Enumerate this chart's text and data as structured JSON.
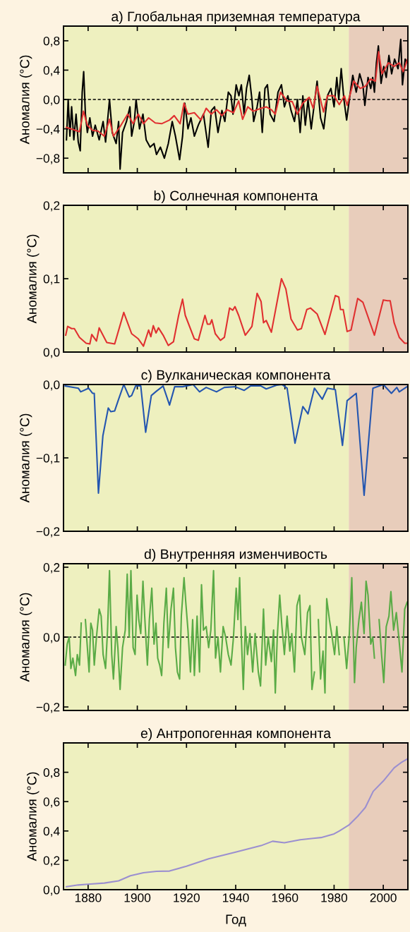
{
  "chart_data": [
    {
      "type": "line",
      "title": "a) Глобальная приземная температура",
      "ylabel": "Аномалия (°C)",
      "tick_labels": "y",
      "xlim": [
        1870,
        2010
      ],
      "xticks": [
        {
          "value": 1880,
          "label": null
        },
        {
          "value": 1900,
          "label": null
        },
        {
          "value": 1920,
          "label": null
        },
        {
          "value": 1940,
          "label": null
        },
        {
          "value": 1960,
          "label": null
        },
        {
          "value": 1980,
          "label": null
        },
        {
          "value": 2000,
          "label": null
        }
      ],
      "ylim": [
        -1.0,
        1.0
      ],
      "yticks": [
        {
          "value": -0.8,
          "label": "−0,8"
        },
        {
          "value": -0.4,
          "label": "−0,4"
        },
        {
          "value": 0,
          "label": "0,0"
        },
        {
          "value": 0.4,
          "label": "0,4"
        },
        {
          "value": 0.8,
          "label": "0,8"
        }
      ],
      "bands": [
        {
          "axis": "x",
          "from": 1870,
          "to": 1986,
          "color": "#eef0bf"
        },
        {
          "axis": "x",
          "from": 1986,
          "to": 2010,
          "color": "#e8cdbb"
        }
      ],
      "ref_lines": [
        {
          "axis": "y",
          "value": 0,
          "color": "#000000",
          "line_style": "dashed"
        }
      ],
      "series": [
        {
          "color": "#000000",
          "x": [
            1871.2,
            1871.9,
            1872.6,
            1873.3,
            1874.2,
            1875.1,
            1876.0,
            1876.8,
            1877.6,
            1878.2,
            1878.9,
            1879.7,
            1880.7,
            1881.8,
            1882.9,
            1884.5,
            1886.1,
            1887.1,
            1888.7,
            1889.8,
            1891.4,
            1892.4,
            1893.0,
            1894.0,
            1895.6,
            1897.0,
            1897.7,
            1898.8,
            1899.5,
            1900.9,
            1902.3,
            1903.6,
            1905.2,
            1906.8,
            1907.8,
            1909.4,
            1911.0,
            1912.6,
            1914.2,
            1915.5,
            1917.2,
            1918.4,
            1919.3,
            1920.6,
            1921.8,
            1923.2,
            1924.8,
            1926.9,
            1928.8,
            1930.1,
            1931.4,
            1932.8,
            1934.4,
            1935.6,
            1937.0,
            1938.1,
            1938.9,
            1940.2,
            1941.3,
            1942.3,
            1943.4,
            1944.4,
            1945.5,
            1946.6,
            1947.3,
            1948.7,
            1949.7,
            1950.8,
            1951.9,
            1952.9,
            1954.0,
            1955.6,
            1957.2,
            1958.6,
            1959.8,
            1961.2,
            1962.5,
            1963.9,
            1965.1,
            1966.2,
            1967.3,
            1968.3,
            1969.4,
            1970.7,
            1972.0,
            1973.1,
            1974.5,
            1975.8,
            1977.3,
            1978.7,
            1980.0,
            1981.1,
            1981.9,
            1982.9,
            1984.0,
            1985.1,
            1986.4,
            1987.6,
            1989.0,
            1990.4,
            1991.7,
            1992.5,
            1993.8,
            1994.9,
            1995.7,
            1996.4,
            1997.2,
            1998.0,
            1999.1,
            2000.2,
            2001.2,
            2002.3,
            2003.4,
            2004.6,
            2006.0,
            2007.1,
            2007.8,
            2008.9,
            2009.9
          ],
          "values": [
            -0.55,
            0.0,
            -0.5,
            -0.1,
            -0.55,
            -0.2,
            -0.58,
            -0.7,
            0.1,
            0.38,
            -0.2,
            -0.45,
            -0.25,
            -0.5,
            -0.35,
            -0.55,
            -0.3,
            -0.58,
            0.0,
            -0.45,
            -0.6,
            -0.3,
            -0.95,
            -0.45,
            -0.3,
            -0.1,
            -0.5,
            -0.3,
            0.0,
            -0.4,
            -0.2,
            -0.55,
            -0.65,
            -0.6,
            -0.75,
            -0.65,
            -0.8,
            -0.6,
            -0.3,
            -0.5,
            -0.82,
            -0.5,
            -0.05,
            -0.4,
            -0.25,
            -0.5,
            -0.35,
            -0.2,
            -0.65,
            -0.15,
            -0.1,
            -0.45,
            -0.15,
            -0.3,
            0.1,
            0.05,
            -0.2,
            0.2,
            0.05,
            0.2,
            -0.2,
            0.15,
            0.33,
            0.0,
            -0.3,
            -0.1,
            0.1,
            -0.45,
            0.15,
            0.2,
            -0.2,
            -0.3,
            0.1,
            0.2,
            -0.1,
            0.05,
            -0.15,
            -0.3,
            0.0,
            -0.45,
            0.05,
            -0.35,
            0.0,
            -0.4,
            -0.05,
            0.25,
            -0.25,
            -0.4,
            0.05,
            0.15,
            -0.1,
            0.3,
            0.0,
            0.42,
            0.0,
            -0.28,
            0.05,
            0.33,
            0.1,
            0.35,
            0.2,
            -0.08,
            0.3,
            0.15,
            0.3,
            0.1,
            0.5,
            0.73,
            0.22,
            0.45,
            0.3,
            0.6,
            0.35,
            0.55,
            0.42,
            0.82,
            0.2,
            0.55,
            0.5
          ]
        },
        {
          "color": "#e03030",
          "x": [
            1871.2,
            1874.9,
            1876.5,
            1878.1,
            1879.7,
            1881.8,
            1884.0,
            1886.6,
            1888.7,
            1890.3,
            1893.0,
            1896.1,
            1898.3,
            1900.4,
            1902.5,
            1904.6,
            1907.3,
            1909.9,
            1913.1,
            1915.0,
            1917.4,
            1919.0,
            1920.6,
            1923.2,
            1925.9,
            1928.0,
            1930.1,
            1932.2,
            1934.4,
            1936.5,
            1939.1,
            1941.2,
            1942.8,
            1944.9,
            1947.1,
            1950.3,
            1952.4,
            1954.5,
            1956.1,
            1958.2,
            1960.9,
            1963.0,
            1965.1,
            1967.3,
            1969.9,
            1971.5,
            1973.1,
            1975.7,
            1977.3,
            1980.0,
            1982.1,
            1984.2,
            1985.3,
            1988.0,
            1990.6,
            1992.7,
            1994.8,
            1996.8,
            1998.1,
            1999.5,
            2002.1,
            2004.4,
            2006.5,
            2008.1,
            2009.9
          ],
          "values": [
            -0.38,
            -0.42,
            -0.44,
            -0.16,
            -0.35,
            -0.42,
            -0.43,
            -0.5,
            -0.27,
            -0.5,
            -0.37,
            -0.2,
            -0.33,
            -0.2,
            -0.33,
            -0.25,
            -0.32,
            -0.33,
            -0.28,
            -0.22,
            -0.33,
            -0.05,
            -0.2,
            -0.18,
            -0.28,
            -0.12,
            -0.2,
            -0.14,
            -0.22,
            -0.14,
            -0.18,
            -0.02,
            -0.27,
            -0.1,
            -0.16,
            -0.12,
            -0.1,
            -0.14,
            -0.2,
            0.1,
            -0.02,
            -0.03,
            -0.2,
            -0.05,
            0.03,
            -0.12,
            0.18,
            -0.17,
            0.05,
            0.05,
            -0.07,
            0.05,
            -0.08,
            0.25,
            0.15,
            0.18,
            0.28,
            0.25,
            0.65,
            0.35,
            0.5,
            0.45,
            0.5,
            0.38,
            0.55
          ]
        }
      ]
    },
    {
      "type": "line",
      "title": "b) Солнечная компонента",
      "ylabel": "Аномалия (°C)",
      "tick_labels": "y",
      "xlim": [
        1870,
        2010
      ],
      "xticks": [
        {
          "value": 1880,
          "label": null
        },
        {
          "value": 1900,
          "label": null
        },
        {
          "value": 1920,
          "label": null
        },
        {
          "value": 1940,
          "label": null
        },
        {
          "value": 1960,
          "label": null
        },
        {
          "value": 1980,
          "label": null
        },
        {
          "value": 2000,
          "label": null
        }
      ],
      "ylim": [
        0,
        0.2
      ],
      "yticks": [
        {
          "value": 0,
          "label": "0,0"
        },
        {
          "value": 0.1,
          "label": "0,1"
        },
        {
          "value": 0.2,
          "label": "0,2"
        }
      ],
      "bands": [
        {
          "axis": "x",
          "from": 1870,
          "to": 1986,
          "color": "#eef0bf"
        },
        {
          "axis": "x",
          "from": 1986,
          "to": 2010,
          "color": "#e8cdbb"
        }
      ],
      "series": [
        {
          "color": "#e03030",
          "x": [
            1870.9,
            1871.7,
            1873.3,
            1874.4,
            1876.5,
            1879.2,
            1880.7,
            1881.5,
            1883.4,
            1884.5,
            1887.6,
            1890.8,
            1894.5,
            1897.7,
            1900.4,
            1902.5,
            1904.6,
            1905.5,
            1906.5,
            1907.6,
            1908.6,
            1910.5,
            1912.6,
            1914.7,
            1916.8,
            1918.4,
            1919.5,
            1923.2,
            1924.8,
            1927.5,
            1928.5,
            1929.6,
            1930.3,
            1931.7,
            1933.8,
            1935.4,
            1937.5,
            1938.8,
            1939.7,
            1941.2,
            1943.9,
            1945.5,
            1946.6,
            1948.7,
            1950.3,
            1951.3,
            1952.4,
            1954.5,
            1958.6,
            1960.4,
            1962.5,
            1965.1,
            1966.7,
            1968.9,
            1970.4,
            1973.1,
            1976.3,
            1980.5,
            1981.9,
            1982.6,
            1983.7,
            1985.3,
            1986.9,
            1989.6,
            1991.7,
            1996.4,
            2000.0,
            2001.7,
            2002.8,
            2004.4,
            2006.5,
            2008.7,
            2009.9
          ],
          "values": [
            0.023,
            0.035,
            0.032,
            0.032,
            0.02,
            0.012,
            0.011,
            0.024,
            0.015,
            0.033,
            0.013,
            0.011,
            0.054,
            0.025,
            0.018,
            0.008,
            0.03,
            0.021,
            0.036,
            0.026,
            0.033,
            0.023,
            0.009,
            0.014,
            0.05,
            0.072,
            0.05,
            0.018,
            0.016,
            0.05,
            0.038,
            0.038,
            0.044,
            0.025,
            0.016,
            0.02,
            0.06,
            0.057,
            0.062,
            0.05,
            0.023,
            0.03,
            0.035,
            0.08,
            0.069,
            0.04,
            0.043,
            0.027,
            0.1,
            0.086,
            0.045,
            0.03,
            0.032,
            0.058,
            0.06,
            0.052,
            0.024,
            0.077,
            0.075,
            0.058,
            0.058,
            0.028,
            0.03,
            0.073,
            0.068,
            0.023,
            0.071,
            0.07,
            0.07,
            0.04,
            0.02,
            0.012,
            0.012
          ]
        }
      ]
    },
    {
      "type": "line",
      "title": "c) Вулканическая компонента",
      "ylabel": "Аномалия (°C)",
      "tick_labels": "y",
      "xlim": [
        1870,
        2010
      ],
      "xticks": [
        {
          "value": 1880,
          "label": null
        },
        {
          "value": 1900,
          "label": null
        },
        {
          "value": 1920,
          "label": null
        },
        {
          "value": 1940,
          "label": null
        },
        {
          "value": 1960,
          "label": null
        },
        {
          "value": 1980,
          "label": null
        },
        {
          "value": 2000,
          "label": null
        }
      ],
      "ylim": [
        -0.2,
        0
      ],
      "yticks": [
        {
          "value": -0.2,
          "label": "−0,2"
        },
        {
          "value": -0.1,
          "label": "−0,1"
        },
        {
          "value": 0,
          "label": "0,0"
        }
      ],
      "bands": [
        {
          "axis": "x",
          "from": 1870,
          "to": 1986,
          "color": "#eef0bf"
        },
        {
          "axis": "x",
          "from": 1986,
          "to": 2010,
          "color": "#e8cdbb"
        }
      ],
      "series": [
        {
          "color": "#2456b0",
          "x": [
            1870.7,
            1876.0,
            1877.0,
            1880.2,
            1881.8,
            1882.5,
            1884.2,
            1886.0,
            1888.2,
            1889.2,
            1890.8,
            1892.4,
            1894.5,
            1896.7,
            1897.7,
            1899.3,
            1901.4,
            1903.4,
            1905.7,
            1907.8,
            1910.5,
            1913.1,
            1915.2,
            1918.4,
            1922.7,
            1925.3,
            1928.0,
            1932.2,
            1935.4,
            1939.7,
            1943.4,
            1946.0,
            1950.3,
            1952.4,
            1956.6,
            1958.8,
            1960.9,
            1964.1,
            1967.3,
            1969.4,
            1972.0,
            1975.2,
            1977.3,
            1980.5,
            1983.4,
            1985.3,
            1989.0,
            1992.2,
            1995.8,
            2000.0,
            2003.3,
            2005.5,
            2006.5,
            2009.6
          ],
          "values": [
            -0.002,
            -0.005,
            -0.01,
            -0.005,
            -0.012,
            -0.012,
            -0.148,
            -0.07,
            -0.032,
            -0.037,
            -0.036,
            -0.02,
            0.0,
            -0.017,
            -0.015,
            -0.002,
            -0.002,
            -0.065,
            -0.015,
            -0.009,
            -0.002,
            -0.028,
            -0.003,
            -0.003,
            0.0,
            -0.01,
            -0.004,
            -0.01,
            -0.004,
            -0.003,
            -0.008,
            -0.002,
            -0.002,
            -0.006,
            -0.001,
            0.0,
            -0.005,
            -0.08,
            -0.03,
            -0.04,
            -0.005,
            -0.02,
            -0.005,
            -0.007,
            -0.083,
            -0.022,
            -0.012,
            -0.151,
            -0.005,
            0.0,
            -0.012,
            -0.004,
            -0.01,
            -0.003
          ]
        }
      ]
    },
    {
      "type": "line",
      "title": "d) Внутренняя изменчивость",
      "ylabel": "Аномалия (°C)",
      "tick_labels": "y",
      "xlim": [
        1870,
        2010
      ],
      "xticks": [
        {
          "value": 1880,
          "label": null
        },
        {
          "value": 1900,
          "label": null
        },
        {
          "value": 1920,
          "label": null
        },
        {
          "value": 1940,
          "label": null
        },
        {
          "value": 1960,
          "label": null
        },
        {
          "value": 1980,
          "label": null
        },
        {
          "value": 2000,
          "label": null
        }
      ],
      "ylim": [
        -0.21,
        0.21
      ],
      "yticks": [
        {
          "value": -0.2,
          "label": "−0,2"
        },
        {
          "value": 0,
          "label": "0,0"
        },
        {
          "value": 0.2,
          "label": "0,2"
        }
      ],
      "bands": [
        {
          "axis": "x",
          "from": 1870,
          "to": 1986,
          "color": "#eef0bf"
        },
        {
          "axis": "x",
          "from": 1986,
          "to": 2010,
          "color": "#e8cdbb"
        }
      ],
      "ref_lines": [
        {
          "axis": "y",
          "value": 0,
          "color": "#000000",
          "line_style": "dashed"
        }
      ],
      "series": [
        {
          "color": "#5aab46",
          "x": [
            1870.7,
            1871.5,
            1872.3,
            1873.0,
            1873.8,
            1874.9,
            1875.6,
            1876.5,
            1877.2,
            1877.9,
            1878.3,
            1878.9,
            1879.7,
            1880.4,
            1881.1,
            1881.8,
            1882.5,
            1883.4,
            1884.5,
            1885.3,
            1886.1,
            1887.1,
            1887.9,
            1888.7,
            1889.6,
            1890.3,
            1891.4,
            1892.1,
            1893.0,
            1894.0,
            1895.1,
            1895.9,
            1896.7,
            1897.4,
            1898.3,
            1899.1,
            1899.9,
            1900.6,
            1901.4,
            1902.3,
            1903.0,
            1904.1,
            1904.9,
            1905.9,
            1906.8,
            1907.6,
            1908.3,
            1909.1,
            1909.9,
            1910.8,
            1911.8,
            1912.6,
            1913.7,
            1914.7,
            1915.5,
            1916.3,
            1917.2,
            1917.9,
            1919.0,
            1919.7,
            1920.6,
            1921.6,
            1922.5,
            1923.2,
            1924.3,
            1925.3,
            1926.1,
            1926.9,
            1928.0,
            1929.0,
            1929.9,
            1931.0,
            1931.8,
            1932.8,
            1933.8,
            1934.9,
            1935.9,
            1937.0,
            1938.1,
            1939.1,
            1940.2,
            1940.9,
            1941.6,
            1942.3,
            1943.1,
            1943.9,
            1944.8,
            1945.8,
            1946.9,
            1947.9,
            1949.2,
            1950.1,
            1951.3,
            1952.2,
            1953.2,
            1954.5,
            1955.4,
            1956.1,
            1956.9,
            1957.9,
            1958.8,
            1959.8,
            1960.9,
            1962.0,
            1962.8,
            1963.9,
            1964.9,
            1966.0,
            1966.7,
            1968.1,
            1969.2,
            1970.2,
            1971.0,
            1972.0,
            1973.1,
            1973.6,
            1974.5,
            1975.5,
            1976.3,
            1977.0,
            1978.1,
            1979.2,
            1980.2,
            1981.1,
            1982.1,
            1983.2,
            1984.0,
            1985.1,
            1986.2,
            1987.2,
            1988.3,
            1989.0,
            1990.1,
            1991.1,
            1992.2,
            1993.0,
            1993.8,
            1994.9,
            1995.7,
            1996.4,
            1997.5,
            1998.3,
            1999.3,
            2000.2,
            2001.2,
            2002.3,
            2003.1,
            2004.2,
            2005.3,
            2006.3,
            2007.6,
            2008.7,
            2009.7
          ],
          "values": [
            -0.08,
            -0.02,
            0.0,
            -0.09,
            -0.06,
            -0.11,
            -0.05,
            -0.08,
            0.04,
            null,
            null,
            0.05,
            -0.03,
            -0.1,
            0.04,
            0.02,
            -0.08,
            0.0,
            0.08,
            0.06,
            -0.05,
            -0.09,
            0.02,
            0.19,
            -0.05,
            -0.12,
            0.03,
            -0.03,
            -0.15,
            -0.03,
            0.02,
            0.18,
            0.0,
            0.19,
            -0.03,
            -0.05,
            0.12,
            0.05,
            0.01,
            0.16,
            0.06,
            -0.08,
            0.05,
            0.14,
            -0.02,
            0.04,
            -0.06,
            -0.08,
            -0.11,
            0.04,
            0.14,
            -0.03,
            0.08,
            0.14,
            -0.03,
            -0.1,
            -0.12,
            0.06,
            0.17,
            0.1,
            0.02,
            -0.1,
            0.05,
            -0.11,
            0.06,
            -0.1,
            0.15,
            0.02,
            0.03,
            -0.03,
            0.02,
            0.19,
            -0.06,
            0.0,
            -0.1,
            0.03,
            0.0,
            -0.05,
            -0.08,
            0.0,
            0.14,
            0.05,
            0.17,
            0.0,
            -0.15,
            0.03,
            -0.05,
            0.01,
            -0.1,
            0.01,
            -0.1,
            -0.14,
            0.08,
            -0.08,
            0.0,
            -0.07,
            0.02,
            -0.16,
            0.0,
            0.12,
            0.03,
            -0.05,
            0.06,
            -0.04,
            0.01,
            -0.1,
            0.09,
            0.12,
            0.0,
            -0.05,
            0.07,
            0.09,
            -0.15,
            -0.1,
            null,
            0.05,
            -0.12,
            -0.04,
            -0.16,
            0.11,
            0.05,
            0.0,
            -0.05,
            0.03,
            -0.05,
            null,
            0.0,
            -0.09,
            0.01,
            0.17,
            -0.13,
            -0.03,
            0.05,
            0.1,
            0.01,
            0.16,
            0.12,
            -0.02,
            0.0,
            -0.06,
            null,
            0.05,
            -0.05,
            -0.13,
            0.03,
            0.06,
            0.13,
            0.02,
            0.07,
            0.0,
            -0.1,
            0.08,
            0.1
          ]
        }
      ]
    },
    {
      "type": "line",
      "title": "e) Антропогенная компонента",
      "xlabel": "Год",
      "ylabel": "Аномалия (°C)",
      "xlim": [
        1870,
        2010
      ],
      "xticks": [
        1880,
        1900,
        1920,
        1940,
        1960,
        1980,
        2000
      ],
      "ylim": [
        0,
        1.0
      ],
      "yticks": [
        {
          "value": 0,
          "label": "0,0"
        },
        {
          "value": 0.2,
          "label": "0,2"
        },
        {
          "value": 0.4,
          "label": "0,4"
        },
        {
          "value": 0.6,
          "label": "0,6"
        },
        {
          "value": 0.8,
          "label": "0,8"
        }
      ],
      "bands": [
        {
          "axis": "x",
          "from": 1870,
          "to": 1986,
          "color": "#eef0bf"
        },
        {
          "axis": "x",
          "from": 1986,
          "to": 2010,
          "color": "#e8cdbb"
        }
      ],
      "series": [
        {
          "color": "#9b8fd0",
          "x": [
            1871.2,
            1876.0,
            1880.0,
            1886.6,
            1892.4,
            1897.2,
            1902.5,
            1907.8,
            1913.1,
            1920.0,
            1929.0,
            1939.7,
            1950.3,
            1955.0,
            1959.8,
            1966.2,
            1971.5,
            1974.7,
            1980.0,
            1982.1,
            1986.0,
            1989.6,
            1992.7,
            1995.9,
            2000.0,
            2004.4,
            2007.6,
            2009.7
          ],
          "values": [
            0.02,
            0.032,
            0.037,
            0.045,
            0.06,
            0.095,
            0.115,
            0.125,
            0.127,
            0.16,
            0.21,
            0.255,
            0.3,
            0.33,
            0.32,
            0.34,
            0.35,
            0.355,
            0.38,
            0.4,
            0.44,
            0.5,
            0.56,
            0.67,
            0.74,
            0.83,
            0.87,
            0.89
          ]
        }
      ]
    }
  ]
}
